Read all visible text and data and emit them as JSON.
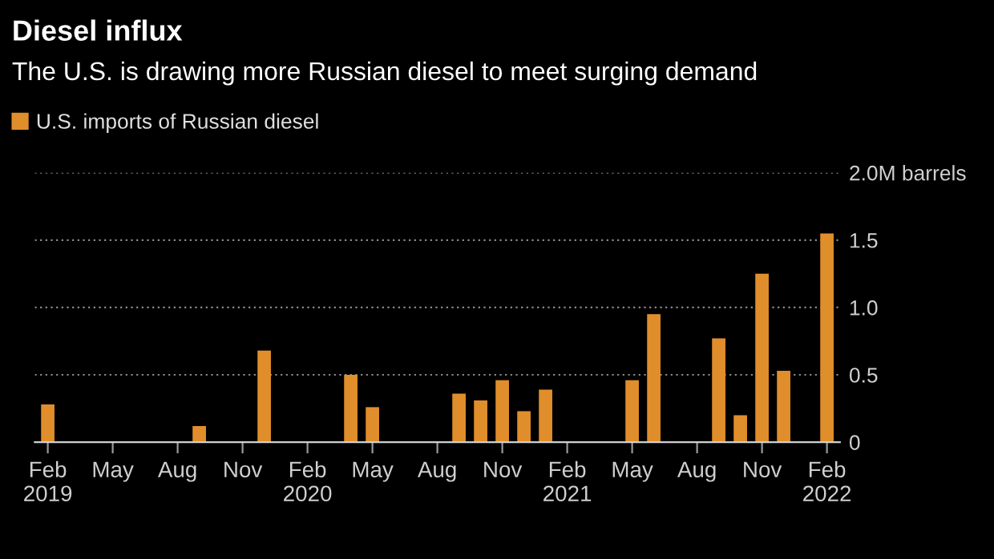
{
  "chart_data": {
    "type": "bar",
    "title": "Diesel influx",
    "subtitle": "The U.S. is drawing more Russian diesel to meet surging demand",
    "categories": [
      "Feb\n2019",
      null,
      null,
      "May",
      null,
      null,
      "Aug",
      null,
      null,
      "Nov",
      null,
      null,
      "Feb\n2020",
      null,
      null,
      "May",
      null,
      null,
      "Aug",
      null,
      null,
      "Nov",
      null,
      null,
      "Feb\n2021",
      null,
      null,
      "May",
      null,
      null,
      "Aug",
      null,
      null,
      "Nov",
      null,
      null,
      "Feb\n2022"
    ],
    "series": [
      {
        "name": "U.S. imports of Russian diesel",
        "color": "#e08e2b",
        "values": [
          0.28,
          0,
          0,
          0,
          0,
          0,
          0,
          0.12,
          0,
          0,
          0.68,
          0,
          0,
          0,
          0.5,
          0.26,
          0,
          0,
          0,
          0.36,
          0.31,
          0.46,
          0.23,
          0.39,
          0,
          0,
          0,
          0.46,
          0.95,
          0,
          0,
          0.77,
          0.2,
          1.25,
          0.53,
          0,
          1.55
        ]
      }
    ],
    "ylim": [
      0,
      2.0
    ],
    "yticks": [
      0,
      0.5,
      {
        "value": 1.0,
        "label": "1.0"
      },
      1.5,
      {
        "value": 2.0,
        "label": "2.0M barrels"
      }
    ],
    "grid": "y",
    "legend": "top left"
  }
}
